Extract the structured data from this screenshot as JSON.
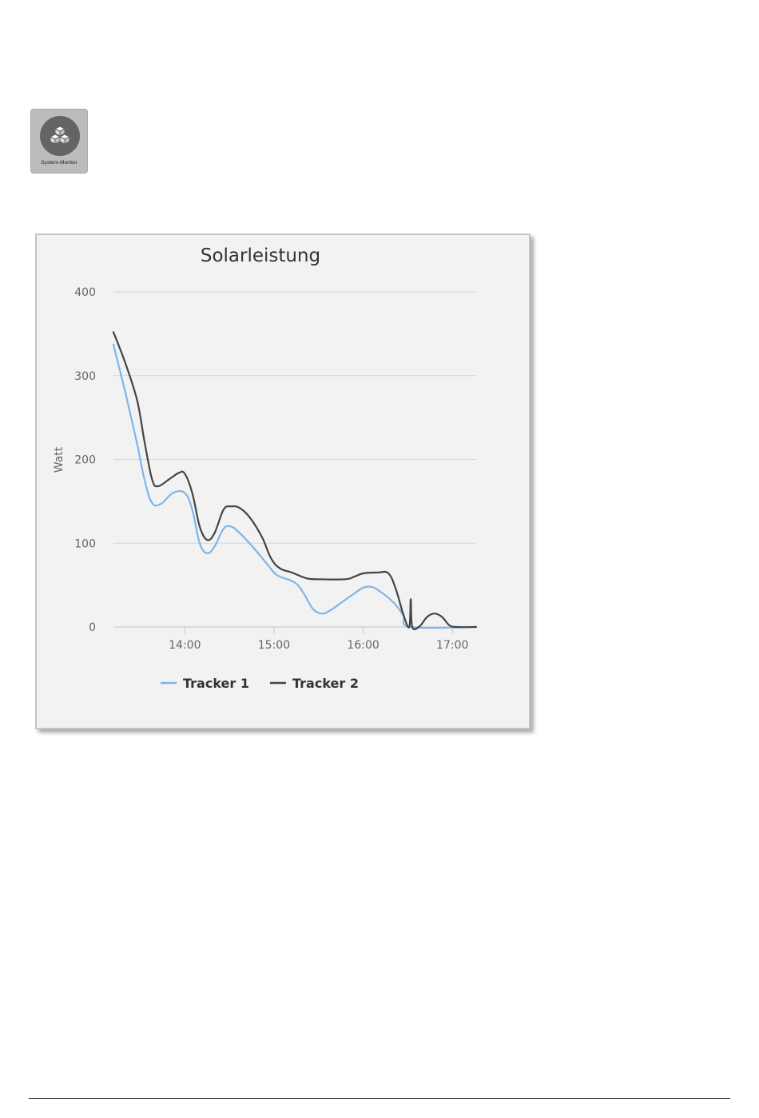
{
  "app_icon": {
    "label": "System-Monitor",
    "icon": "cubes-icon"
  },
  "chart_data": {
    "type": "line",
    "title": "Solarleistung",
    "xlabel": "",
    "ylabel": "Watt",
    "ylim": [
      0,
      400
    ],
    "yticks": [
      0,
      100,
      200,
      300,
      400
    ],
    "xlim": [
      "13:12",
      "17:16"
    ],
    "xticks": [
      "14:00",
      "15:00",
      "16:00",
      "17:00"
    ],
    "grid": true,
    "legend": "bottom",
    "series": [
      {
        "name": "Tracker 1",
        "color": "#7eb5ea",
        "points": [
          [
            "13:12",
            337
          ],
          [
            "13:20",
            280
          ],
          [
            "13:28",
            218
          ],
          [
            "13:33",
            175
          ],
          [
            "13:38",
            148
          ],
          [
            "13:44",
            147
          ],
          [
            "13:52",
            160
          ],
          [
            "14:00",
            160
          ],
          [
            "14:05",
            140
          ],
          [
            "14:10",
            100
          ],
          [
            "14:15",
            88
          ],
          [
            "14:20",
            96
          ],
          [
            "14:26",
            117
          ],
          [
            "14:31",
            120
          ],
          [
            "14:37",
            112
          ],
          [
            "14:46",
            95
          ],
          [
            "14:55",
            76
          ],
          [
            "15:02",
            62
          ],
          [
            "15:14",
            53
          ],
          [
            "15:20",
            40
          ],
          [
            "15:26",
            22
          ],
          [
            "15:32",
            16
          ],
          [
            "15:38",
            20
          ],
          [
            "15:46",
            30
          ],
          [
            "15:54",
            40
          ],
          [
            "16:00",
            47
          ],
          [
            "16:05",
            48
          ],
          [
            "16:10",
            44
          ],
          [
            "16:20",
            30
          ],
          [
            "16:27",
            14
          ],
          [
            "16:32",
            0
          ],
          [
            "17:16",
            0
          ]
        ]
      },
      {
        "name": "Tracker 2",
        "color": "#444444",
        "points": [
          [
            "13:12",
            352
          ],
          [
            "13:20",
            315
          ],
          [
            "13:28",
            270
          ],
          [
            "13:33",
            220
          ],
          [
            "13:38",
            176
          ],
          [
            "13:42",
            168
          ],
          [
            "13:50",
            177
          ],
          [
            "13:56",
            184
          ],
          [
            "14:00",
            183
          ],
          [
            "14:05",
            160
          ],
          [
            "14:10",
            120
          ],
          [
            "14:15",
            104
          ],
          [
            "14:20",
            112
          ],
          [
            "14:26",
            140
          ],
          [
            "14:31",
            144
          ],
          [
            "14:37",
            142
          ],
          [
            "14:44",
            130
          ],
          [
            "14:52",
            107
          ],
          [
            "14:58",
            82
          ],
          [
            "15:04",
            70
          ],
          [
            "15:12",
            65
          ],
          [
            "15:22",
            58
          ],
          [
            "15:30",
            57
          ],
          [
            "15:48",
            57
          ],
          [
            "15:54",
            60
          ],
          [
            "16:00",
            64
          ],
          [
            "16:10",
            65
          ],
          [
            "16:17",
            64
          ],
          [
            "16:22",
            45
          ],
          [
            "16:27",
            15
          ],
          [
            "16:31",
            0
          ],
          [
            "16:32",
            33
          ],
          [
            "16:33",
            0
          ],
          [
            "16:38",
            1
          ],
          [
            "16:43",
            12
          ],
          [
            "16:48",
            16
          ],
          [
            "16:53",
            12
          ],
          [
            "16:58",
            2
          ],
          [
            "17:03",
            0
          ],
          [
            "17:16",
            0
          ]
        ]
      }
    ]
  }
}
